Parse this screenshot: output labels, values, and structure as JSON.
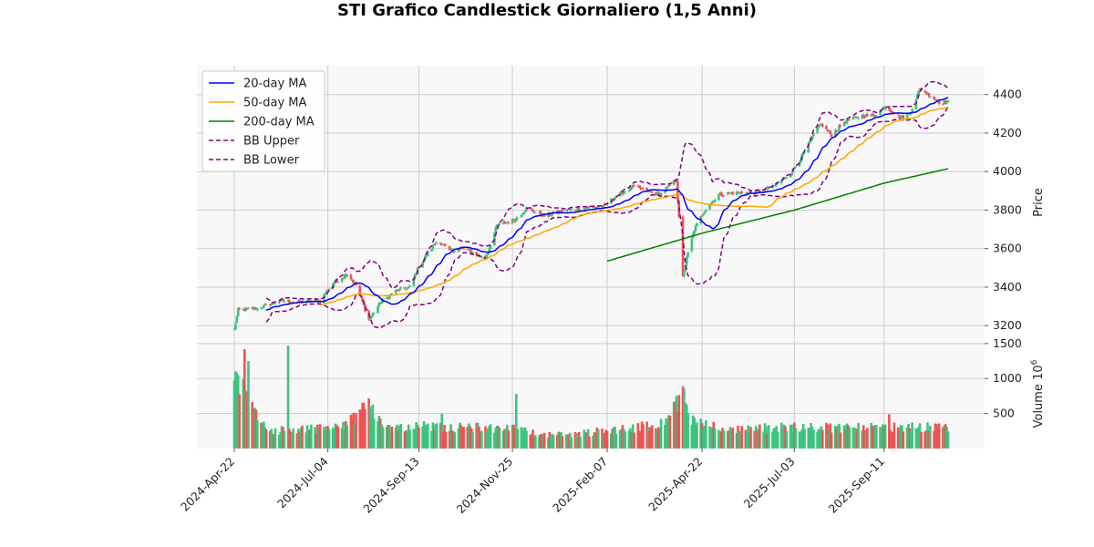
{
  "chart_data": {
    "type": "candlestick",
    "title": "STI Grafico Candlestick Giornaliero (1,5 Anni)",
    "price_axis": {
      "label": "Price",
      "ylim": [
        3130,
        4550
      ],
      "ticks": [
        3200,
        3400,
        3600,
        3800,
        4000,
        4200,
        4400
      ]
    },
    "volume_axis": {
      "label": "Volume",
      "exponent": "6",
      "ylim": [
        0,
        1550
      ],
      "ticks": [
        500,
        1000,
        1500
      ]
    },
    "x_axis": {
      "start": "2024-04-22",
      "end": "2025-10-31",
      "tick_labels": [
        "2024-Apr-22",
        "2024-Jul-04",
        "2024-Sep-13",
        "2024-Nov-25",
        "2025-Feb-07",
        "2025-Apr-22",
        "2025-Jul-03",
        "2025-Sep-11"
      ]
    },
    "grid": true,
    "legend_position": "top-left",
    "legend": [
      {
        "name": "20-day MA",
        "color": "#0000ff",
        "style": "solid"
      },
      {
        "name": "50-day MA",
        "color": "#ffa500",
        "style": "solid"
      },
      {
        "name": "200-day MA",
        "color": "#008000",
        "style": "solid"
      },
      {
        "name": "BB Upper",
        "color": "#800080",
        "style": "dashed"
      },
      {
        "name": "BB Lower",
        "color": "#800080",
        "style": "dashed"
      }
    ],
    "colors": {
      "up": "#3cc47f",
      "down": "#f05252"
    },
    "price_anchors": [
      [
        "2024-04-22",
        3180
      ],
      [
        "2024-04-25",
        3280
      ],
      [
        "2024-05-10",
        3290
      ],
      [
        "2024-05-28",
        3330
      ],
      [
        "2024-06-12",
        3320
      ],
      [
        "2024-06-28",
        3330
      ],
      [
        "2024-07-08",
        3420
      ],
      [
        "2024-07-19",
        3470
      ],
      [
        "2024-07-26",
        3410
      ],
      [
        "2024-08-05",
        3230
      ],
      [
        "2024-08-14",
        3320
      ],
      [
        "2024-08-26",
        3380
      ],
      [
        "2024-09-06",
        3400
      ],
      [
        "2024-09-13",
        3510
      ],
      [
        "2024-09-27",
        3640
      ],
      [
        "2024-10-07",
        3590
      ],
      [
        "2024-10-18",
        3600
      ],
      [
        "2024-11-04",
        3550
      ],
      [
        "2024-11-13",
        3720
      ],
      [
        "2024-11-27",
        3750
      ],
      [
        "2024-12-06",
        3810
      ],
      [
        "2024-12-20",
        3770
      ],
      [
        "2025-01-06",
        3800
      ],
      [
        "2025-01-20",
        3810
      ],
      [
        "2025-02-05",
        3820
      ],
      [
        "2025-02-13",
        3870
      ],
      [
        "2025-02-27",
        3920
      ],
      [
        "2025-03-10",
        3900
      ],
      [
        "2025-03-20",
        3880
      ],
      [
        "2025-04-02",
        3960
      ],
      [
        "2025-04-07",
        3450
      ],
      [
        "2025-04-10",
        3550
      ],
      [
        "2025-04-16",
        3700
      ],
      [
        "2025-04-24",
        3800
      ],
      [
        "2025-05-05",
        3880
      ],
      [
        "2025-05-16",
        3890
      ],
      [
        "2025-06-02",
        3890
      ],
      [
        "2025-06-16",
        3920
      ],
      [
        "2025-06-30",
        3990
      ],
      [
        "2025-07-11",
        4100
      ],
      [
        "2025-07-23",
        4250
      ],
      [
        "2025-08-01",
        4190
      ],
      [
        "2025-08-11",
        4260
      ],
      [
        "2025-08-25",
        4290
      ],
      [
        "2025-09-03",
        4290
      ],
      [
        "2025-09-12",
        4340
      ],
      [
        "2025-09-24",
        4280
      ],
      [
        "2025-10-01",
        4300
      ],
      [
        "2025-10-09",
        4430
      ],
      [
        "2025-10-16",
        4400
      ],
      [
        "2025-10-24",
        4360
      ],
      [
        "2025-10-31",
        4360
      ]
    ],
    "volume_anchors": [
      [
        "2024-04-22",
        1250
      ],
      [
        "2024-05-03",
        600
      ],
      [
        "2024-05-20",
        250
      ],
      [
        "2024-06-20",
        280
      ],
      [
        "2024-07-15",
        300
      ],
      [
        "2024-08-05",
        600
      ],
      [
        "2024-08-20",
        280
      ],
      [
        "2024-09-20",
        330
      ],
      [
        "2024-10-15",
        300
      ],
      [
        "2024-11-20",
        300
      ],
      [
        "2024-12-20",
        200
      ],
      [
        "2025-01-10",
        200
      ],
      [
        "2025-02-10",
        270
      ],
      [
        "2025-03-20",
        330
      ],
      [
        "2025-04-07",
        800
      ],
      [
        "2025-04-15",
        400
      ],
      [
        "2025-05-10",
        270
      ],
      [
        "2025-06-20",
        300
      ],
      [
        "2025-07-20",
        300
      ],
      [
        "2025-08-20",
        300
      ],
      [
        "2025-09-20",
        300
      ],
      [
        "2025-10-31",
        300
      ]
    ],
    "volume_spikes": [
      [
        "2024-04-24",
        1080
      ],
      [
        "2024-04-30",
        1420
      ],
      [
        "2024-05-03",
        1250
      ],
      [
        "2024-06-03",
        1470
      ],
      [
        "2024-08-06",
        600
      ],
      [
        "2024-10-01",
        500
      ],
      [
        "2024-11-28",
        780
      ],
      [
        "2025-04-07",
        890
      ],
      [
        "2025-04-09",
        650
      ],
      [
        "2025-09-15",
        490
      ]
    ],
    "ma200_start": "2025-02-07",
    "ma200_anchors": [
      [
        "2025-02-07",
        3535
      ],
      [
        "2025-04-22",
        3680
      ],
      [
        "2025-07-03",
        3800
      ],
      [
        "2025-09-11",
        3940
      ],
      [
        "2025-10-31",
        4015
      ]
    ]
  }
}
